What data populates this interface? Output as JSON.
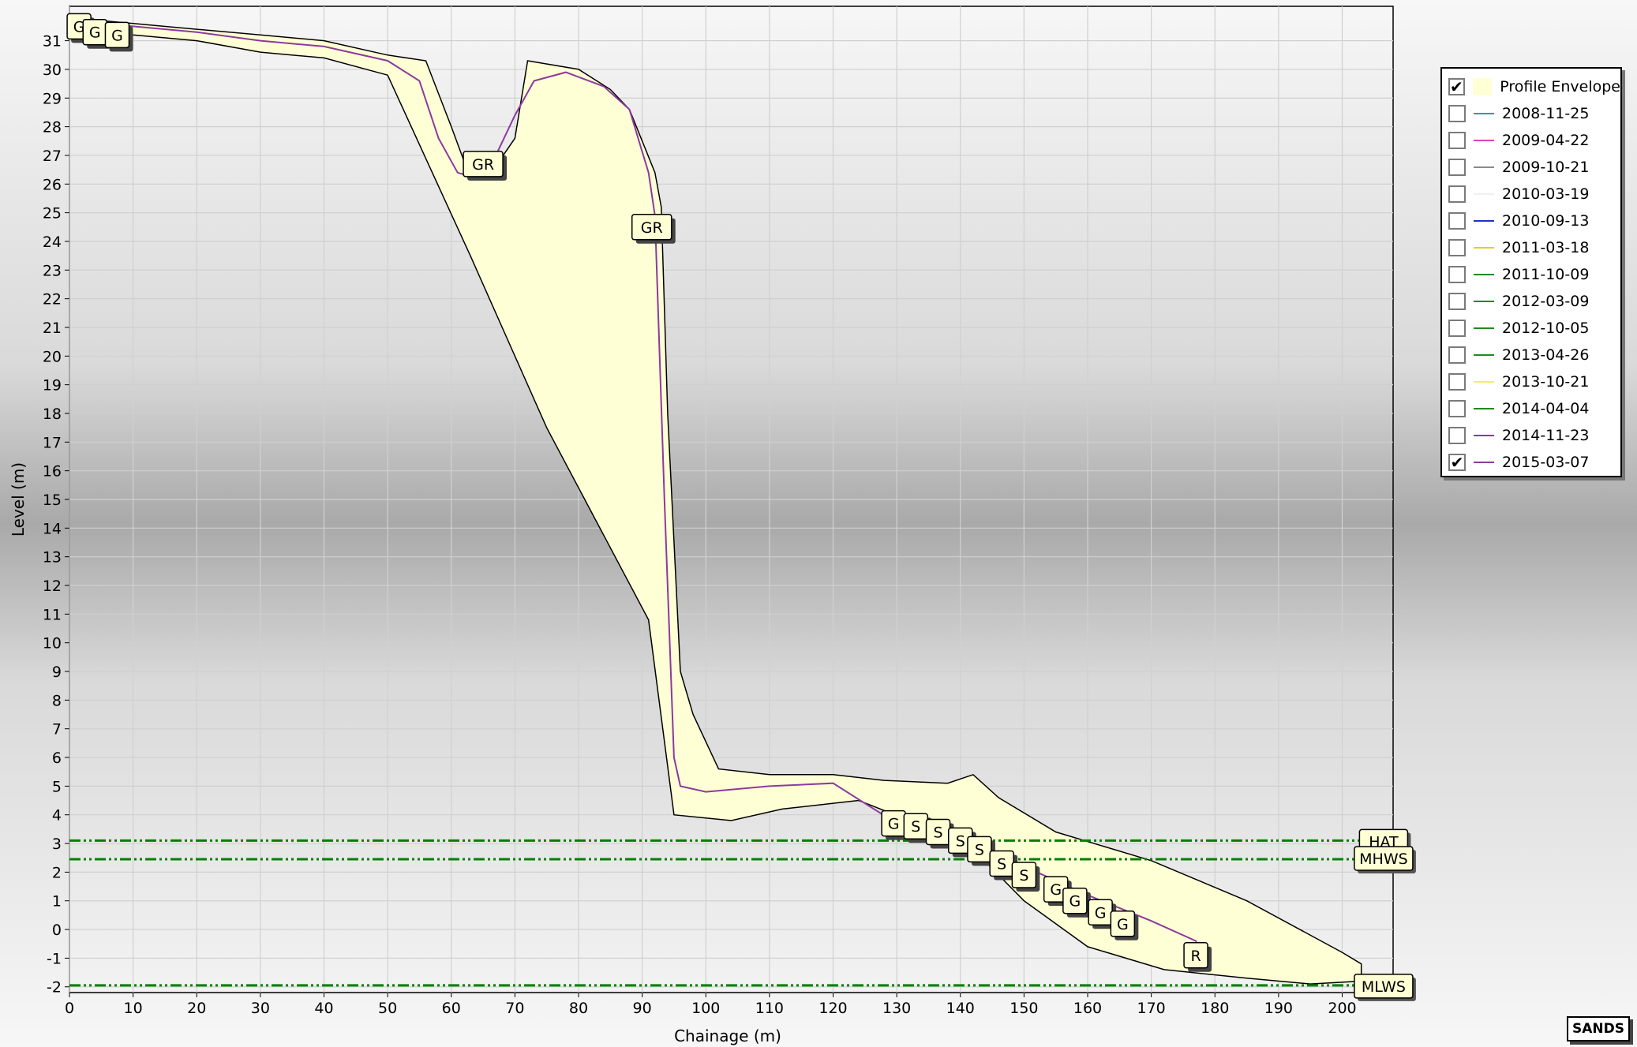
{
  "chart_data": {
    "type": "line",
    "title": "",
    "xlabel": "Chainage (m)",
    "ylabel": "Level (m)",
    "xlim": [
      0,
      208
    ],
    "ylim": [
      -2.2,
      32.2
    ],
    "x_ticks": [
      0,
      10,
      20,
      30,
      40,
      50,
      60,
      70,
      80,
      90,
      100,
      110,
      120,
      130,
      140,
      150,
      160,
      170,
      180,
      190,
      200
    ],
    "y_ticks": [
      -2,
      -1,
      0,
      1,
      2,
      3,
      4,
      5,
      6,
      7,
      8,
      9,
      10,
      11,
      12,
      13,
      14,
      15,
      16,
      17,
      18,
      19,
      20,
      21,
      22,
      23,
      24,
      25,
      26,
      27,
      28,
      29,
      30,
      31
    ],
    "grid": true,
    "legend_position": "right",
    "envelope": {
      "name": "Profile Envelope",
      "color": "#ffffd6",
      "upper": [
        [
          0,
          31.8
        ],
        [
          10,
          31.6
        ],
        [
          20,
          31.4
        ],
        [
          30,
          31.2
        ],
        [
          40,
          31.0
        ],
        [
          50,
          30.5
        ],
        [
          56,
          30.3
        ],
        [
          60,
          28.0
        ],
        [
          62,
          26.8
        ],
        [
          66,
          26.3
        ],
        [
          70,
          27.6
        ],
        [
          72,
          30.3
        ],
        [
          80,
          30.0
        ],
        [
          85,
          29.3
        ],
        [
          88,
          28.6
        ],
        [
          92,
          26.4
        ],
        [
          93,
          25.2
        ],
        [
          94,
          18
        ],
        [
          96,
          9
        ],
        [
          98,
          7.5
        ],
        [
          102,
          5.6
        ],
        [
          110,
          5.4
        ],
        [
          120,
          5.4
        ],
        [
          128,
          5.2
        ],
        [
          138,
          5.1
        ],
        [
          142,
          5.4
        ],
        [
          146,
          4.6
        ],
        [
          155,
          3.4
        ],
        [
          170,
          2.4
        ],
        [
          185,
          1.0
        ],
        [
          200,
          -0.8
        ],
        [
          203,
          -1.2
        ]
      ],
      "lower": [
        [
          203,
          -1.8
        ],
        [
          195,
          -1.9
        ],
        [
          185,
          -1.7
        ],
        [
          172,
          -1.4
        ],
        [
          160,
          -0.6
        ],
        [
          150,
          1.0
        ],
        [
          142,
          2.8
        ],
        [
          132,
          3.8
        ],
        [
          124,
          4.5
        ],
        [
          112,
          4.2
        ],
        [
          104,
          3.8
        ],
        [
          95,
          4.0
        ],
        [
          91,
          10.8
        ],
        [
          75,
          17.5
        ],
        [
          63,
          23.5
        ],
        [
          50,
          29.8
        ],
        [
          40,
          30.4
        ],
        [
          30,
          30.6
        ],
        [
          20,
          31.0
        ],
        [
          10,
          31.2
        ],
        [
          0,
          31.5
        ]
      ]
    },
    "series": [
      {
        "name": "2015-03-07",
        "color": "#8b3a9e",
        "values": [
          [
            0,
            31.7
          ],
          [
            10,
            31.5
          ],
          [
            20,
            31.3
          ],
          [
            30,
            31.0
          ],
          [
            40,
            30.8
          ],
          [
            50,
            30.3
          ],
          [
            55,
            29.6
          ],
          [
            58,
            27.6
          ],
          [
            61,
            26.4
          ],
          [
            64,
            26.2
          ],
          [
            67,
            27.0
          ],
          [
            70,
            28.4
          ],
          [
            73,
            29.6
          ],
          [
            78,
            29.9
          ],
          [
            84,
            29.4
          ],
          [
            88,
            28.6
          ],
          [
            91,
            26.4
          ],
          [
            92,
            24.9
          ],
          [
            93.5,
            15
          ],
          [
            95,
            6
          ],
          [
            96,
            5.0
          ],
          [
            100,
            4.8
          ],
          [
            110,
            5.0
          ],
          [
            120,
            5.1
          ],
          [
            125,
            4.4
          ],
          [
            130,
            3.7
          ],
          [
            140,
            3.0
          ],
          [
            150,
            2.2
          ],
          [
            160,
            1.2
          ],
          [
            170,
            0.3
          ],
          [
            177,
            -0.4
          ],
          [
            178,
            -0.9
          ]
        ]
      }
    ],
    "point_labels": [
      {
        "text": "G",
        "x": 1.5,
        "y": 31.5
      },
      {
        "text": "G",
        "x": 4,
        "y": 31.3
      },
      {
        "text": "G",
        "x": 7.5,
        "y": 31.2
      },
      {
        "text": "GR",
        "x": 65,
        "y": 26.7
      },
      {
        "text": "GR",
        "x": 91.5,
        "y": 24.5
      },
      {
        "text": "G",
        "x": 129.5,
        "y": 3.7
      },
      {
        "text": "S",
        "x": 133,
        "y": 3.6
      },
      {
        "text": "S",
        "x": 136.5,
        "y": 3.4
      },
      {
        "text": "S",
        "x": 140,
        "y": 3.1
      },
      {
        "text": "S",
        "x": 143,
        "y": 2.8
      },
      {
        "text": "S",
        "x": 146.5,
        "y": 2.3
      },
      {
        "text": "S",
        "x": 150,
        "y": 1.9
      },
      {
        "text": "G",
        "x": 155,
        "y": 1.4
      },
      {
        "text": "G",
        "x": 158,
        "y": 1.0
      },
      {
        "text": "G",
        "x": 162,
        "y": 0.6
      },
      {
        "text": "G",
        "x": 165.5,
        "y": 0.2
      },
      {
        "text": "R",
        "x": 177,
        "y": -0.9
      }
    ],
    "reference_lines": [
      {
        "name": "HAT",
        "y": 3.1,
        "color": "#008000"
      },
      {
        "name": "MHWS",
        "y": 2.45,
        "color": "#008000"
      },
      {
        "name": "MLWS",
        "y": -1.95,
        "color": "#008000"
      }
    ]
  },
  "legend": {
    "items": [
      {
        "label": "Profile Envelope",
        "checked": true,
        "color": "#ffffd6",
        "kind": "fill"
      },
      {
        "label": "2008-11-25",
        "checked": false,
        "color": "#2e9aa6"
      },
      {
        "label": "2009-04-22",
        "checked": false,
        "color": "#e040c0"
      },
      {
        "label": "2009-10-21",
        "checked": false,
        "color": "#8a8a8a"
      },
      {
        "label": "2010-03-19",
        "checked": false,
        "color": "#f0f0f0"
      },
      {
        "label": "2010-09-13",
        "checked": false,
        "color": "#2030d0"
      },
      {
        "label": "2011-03-18",
        "checked": false,
        "color": "#e0d020"
      },
      {
        "label": "2011-10-09",
        "checked": false,
        "color": "#208a20"
      },
      {
        "label": "2012-03-09",
        "checked": false,
        "color": "#208a20"
      },
      {
        "label": "2012-10-05",
        "checked": false,
        "color": "#208a20"
      },
      {
        "label": "2013-04-26",
        "checked": false,
        "color": "#208a20"
      },
      {
        "label": "2013-10-21",
        "checked": false,
        "color": "#f0f060"
      },
      {
        "label": "2014-04-04",
        "checked": false,
        "color": "#208a20"
      },
      {
        "label": "2014-11-23",
        "checked": false,
        "color": "#8b3a9e"
      },
      {
        "label": "2015-03-07",
        "checked": true,
        "color": "#8b3a9e"
      }
    ]
  },
  "logo_text": "SANDS"
}
